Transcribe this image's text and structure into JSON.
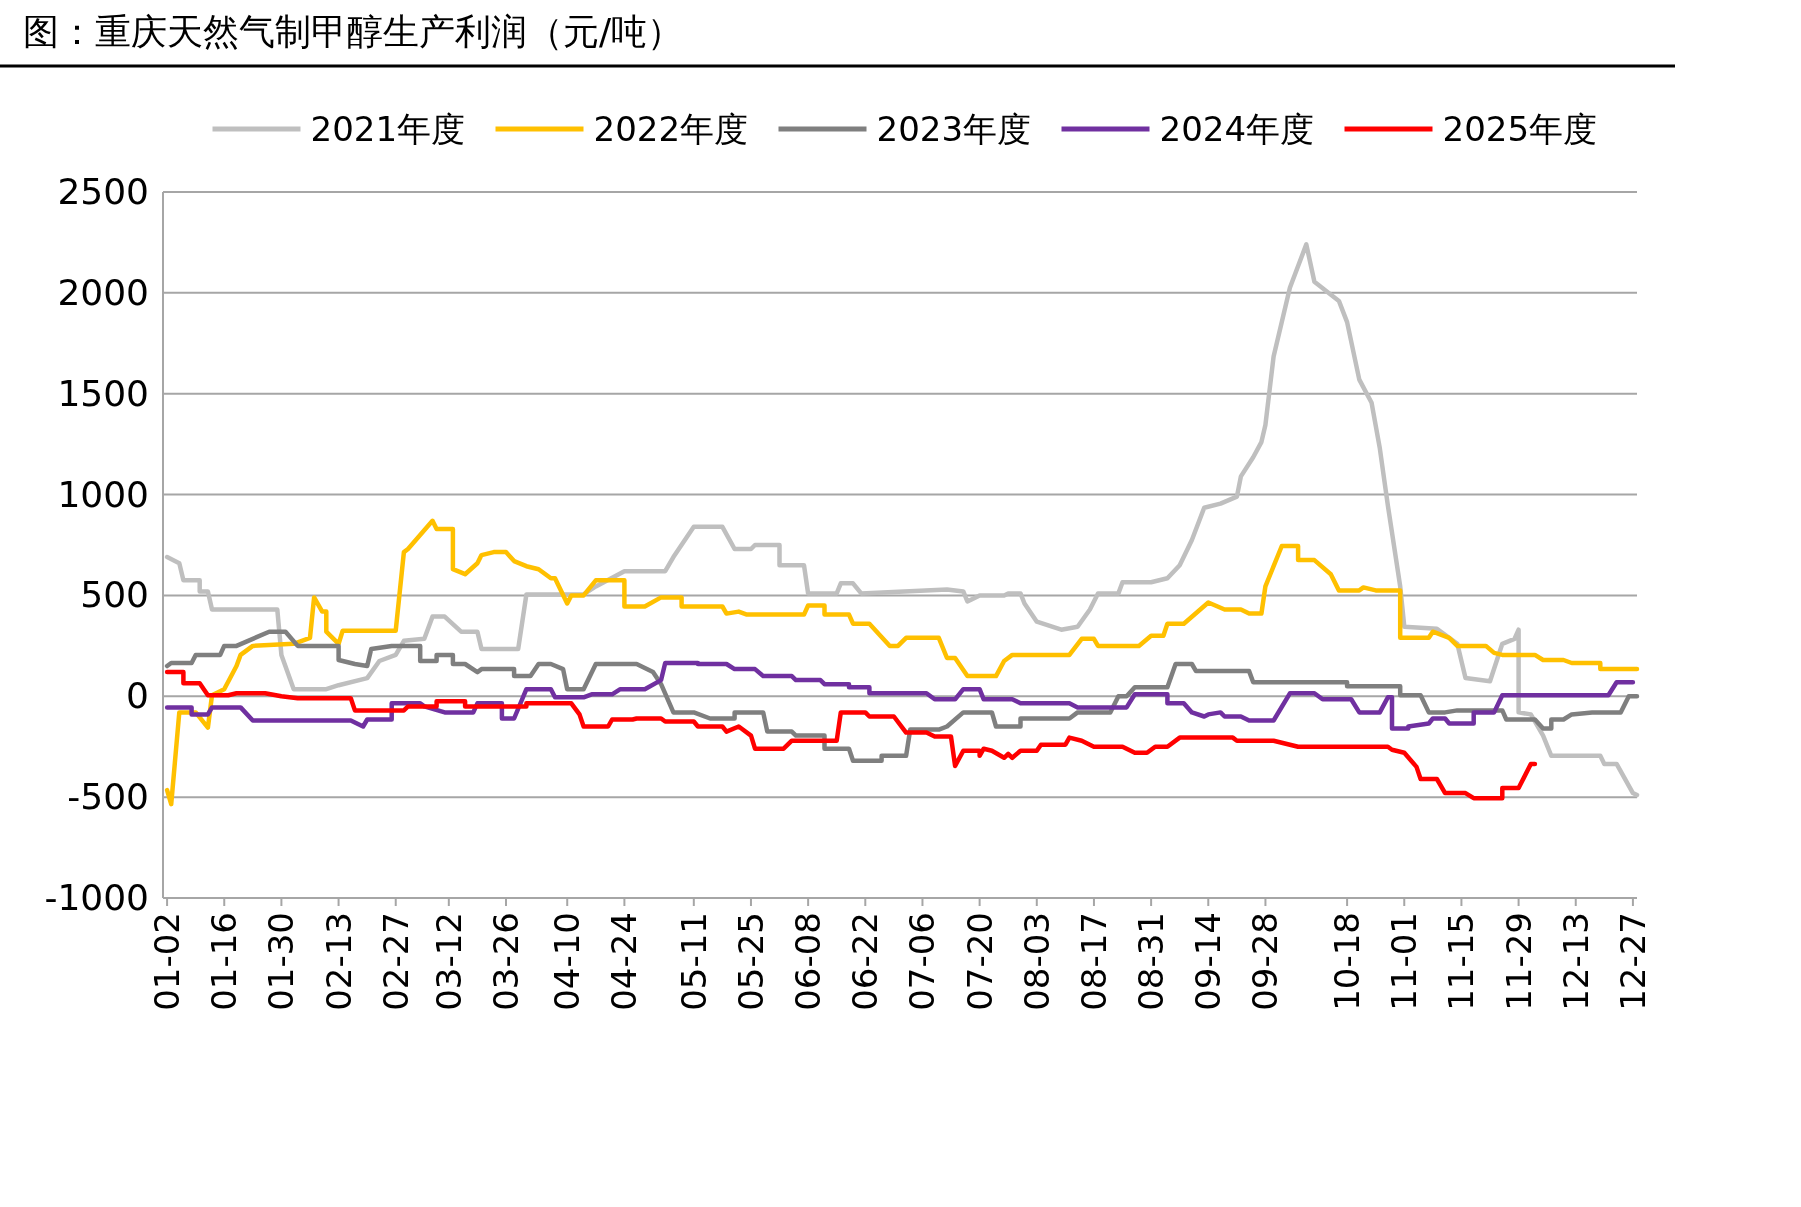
{
  "chart_data": {
    "type": "line",
    "title": "图：重庆天然气制甲醇生产利润（元/吨）",
    "legend": "top",
    "grid": "y",
    "xlim": [
      "--01-01",
      "--12-28"
    ],
    "xticks": [
      {
        "value": "--01-02",
        "label": "01-02"
      },
      {
        "value": "--01-16",
        "label": "01-16"
      },
      {
        "value": "--01-30",
        "label": "01-30"
      },
      {
        "value": "--02-13",
        "label": "02-13"
      },
      {
        "value": "--02-27",
        "label": "02-27"
      },
      {
        "value": "--03-12",
        "label": "03-12"
      },
      {
        "value": "--03-26",
        "label": "03-26"
      },
      {
        "value": "--04-10",
        "label": "04-10"
      },
      {
        "value": "--04-24",
        "label": "04-24"
      },
      {
        "value": "--05-11",
        "label": "05-11"
      },
      {
        "value": "--05-25",
        "label": "05-25"
      },
      {
        "value": "--06-08",
        "label": "06-08"
      },
      {
        "value": "--06-22",
        "label": "06-22"
      },
      {
        "value": "--07-06",
        "label": "07-06"
      },
      {
        "value": "--07-20",
        "label": "07-20"
      },
      {
        "value": "--08-03",
        "label": "08-03"
      },
      {
        "value": "--08-17",
        "label": "08-17"
      },
      {
        "value": "--08-31",
        "label": "08-31"
      },
      {
        "value": "--09-14",
        "label": "09-14"
      },
      {
        "value": "--09-28",
        "label": "09-28"
      },
      {
        "value": "--10-18",
        "label": "10-18"
      },
      {
        "value": "--11-01",
        "label": "11-01"
      },
      {
        "value": "--11-15",
        "label": "11-15"
      },
      {
        "value": "--11-29",
        "label": "11-29"
      },
      {
        "value": "--12-13",
        "label": "12-13"
      },
      {
        "value": "--12-27",
        "label": "12-27"
      }
    ],
    "ylim": [
      -1000,
      2500
    ],
    "yticks": [
      -1000,
      -500,
      0,
      500,
      1000,
      1500,
      2000,
      2500
    ],
    "series": [
      {
        "name": "2021年度",
        "color": "#bfbfbf",
        "x": [
          "--01-02",
          "--01-05",
          "--01-06",
          "--01-10",
          "--01-10",
          "--01-12",
          "--01-13",
          "--01-29",
          "--01-30",
          "--02-02",
          "--02-10",
          "--02-13",
          "--02-20",
          "--02-23",
          "--02-27",
          "--03-01",
          "--03-06",
          "--03-08",
          "--03-11",
          "--03-15",
          "--03-19",
          "--03-20",
          "--03-29",
          "--03-31",
          "--04-14",
          "--04-17",
          "--04-24",
          "--05-04",
          "--05-06",
          "--05-11",
          "--05-18",
          "--05-21",
          "--05-25",
          "--05-26",
          "--06-01",
          "--06-01",
          "--06-07",
          "--06-08",
          "--06-15",
          "--06-16",
          "--06-19",
          "--06-21",
          "--07-12",
          "--07-16",
          "--07-17",
          "--07-20",
          "--07-26",
          "--07-27",
          "--07-30",
          "--07-31",
          "--08-03",
          "--08-09",
          "--08-13",
          "--08-16",
          "--08-18",
          "--08-23",
          "--08-24",
          "--08-31",
          "--09-04",
          "--09-07",
          "--09-10",
          "--09-13",
          "--09-17",
          "--09-21",
          "--09-22",
          "--09-25",
          "--09-27",
          "--09-28",
          "--09-30",
          "--10-04",
          "--10-08",
          "--10-10",
          "--10-16",
          "--10-18",
          "--10-21",
          "--10-24",
          "--10-26",
          "--10-28",
          "--10-31",
          "--11-01",
          "--11-09",
          "--11-14",
          "--11-16",
          "--11-22",
          "--11-25",
          "--11-28",
          "--11-29",
          "--11-29",
          "--12-02",
          "--12-05",
          "--12-07",
          "--12-19",
          "--12-20",
          "--12-23",
          "--12-27",
          "--12-28"
        ],
        "values": [
          690,
          660,
          575,
          575,
          520,
          520,
          430,
          430,
          205,
          35,
          35,
          55,
          90,
          175,
          205,
          275,
          285,
          395,
          395,
          320,
          320,
          235,
          235,
          505,
          505,
          545,
          620,
          620,
          690,
          840,
          840,
          730,
          730,
          750,
          750,
          650,
          650,
          510,
          510,
          560,
          560,
          510,
          530,
          520,
          470,
          500,
          500,
          510,
          510,
          460,
          370,
          330,
          345,
          430,
          510,
          510,
          565,
          565,
          585,
          650,
          775,
          935,
          955,
          990,
          1090,
          1185,
          1260,
          1345,
          1685,
          2025,
          2240,
          2055,
          1960,
          1855,
          1570,
          1455,
          1230,
          945,
          545,
          345,
          335,
          260,
          90,
          75,
          260,
          285,
          330,
          -80,
          -90,
          -195,
          -295,
          -295,
          -335,
          -335,
          -480,
          -490
        ]
      },
      {
        "name": "2022年度",
        "color": "#ffc000",
        "x": [
          "--01-02",
          "--01-03",
          "--01-05",
          "--01-09",
          "--01-12",
          "--01-13",
          "--01-16",
          "--01-19",
          "--01-20",
          "--01-23",
          "--02-02",
          "--02-06",
          "--02-07",
          "--02-09",
          "--02-10",
          "--02-10",
          "--02-13",
          "--02-14",
          "--02-27",
          "--03-01",
          "--03-02",
          "--03-08",
          "--03-09",
          "--03-13",
          "--03-13",
          "--03-16",
          "--03-19",
          "--03-20",
          "--03-23",
          "--03-26",
          "--03-28",
          "--03-31",
          "--04-03",
          "--04-06",
          "--04-07",
          "--04-10",
          "--04-11",
          "--04-14",
          "--04-17",
          "--04-24",
          "--04-24",
          "--04-29",
          "--05-03",
          "--05-08",
          "--05-08",
          "--05-18",
          "--05-19",
          "--05-22",
          "--05-24",
          "--06-07",
          "--06-08",
          "--06-12",
          "--06-12",
          "--06-18",
          "--06-19",
          "--06-23",
          "--06-28",
          "--06-30",
          "--07-02",
          "--07-10",
          "--07-12",
          "--07-14",
          "--07-17",
          "--07-24",
          "--07-26",
          "--07-28",
          "--08-11",
          "--08-14",
          "--08-17",
          "--08-18",
          "--08-28",
          "--08-31",
          "--09-03",
          "--09-04",
          "--09-08",
          "--09-14",
          "--09-18",
          "--09-22",
          "--09-24",
          "--09-27",
          "--09-28",
          "--10-02",
          "--10-06",
          "--10-06",
          "--10-10",
          "--10-14",
          "--10-16",
          "--10-21",
          "--10-22",
          "--10-25",
          "--10-31",
          "--10-31",
          "--11-07",
          "--11-08",
          "--11-12",
          "--11-14",
          "--11-21",
          "--11-23",
          "--11-25",
          "--12-03",
          "--12-05",
          "--12-10",
          "--12-12",
          "--12-19",
          "--12-19",
          "--12-28"
        ],
        "values": [
          -465,
          -535,
          -80,
          -80,
          -155,
          5,
          35,
          150,
          205,
          250,
          260,
          290,
          490,
          420,
          420,
          320,
          260,
          325,
          325,
          715,
          730,
          870,
          830,
          830,
          630,
          605,
          660,
          700,
          715,
          715,
          670,
          645,
          630,
          585,
          585,
          460,
          500,
          500,
          575,
          575,
          445,
          445,
          490,
          490,
          445,
          445,
          410,
          420,
          405,
          405,
          450,
          450,
          405,
          405,
          360,
          360,
          250,
          250,
          290,
          290,
          190,
          190,
          100,
          100,
          175,
          205,
          205,
          285,
          285,
          250,
          250,
          300,
          300,
          360,
          360,
          465,
          430,
          430,
          410,
          410,
          545,
          745,
          745,
          675,
          675,
          605,
          525,
          525,
          540,
          525,
          525,
          290,
          290,
          320,
          290,
          250,
          250,
          215,
          205,
          205,
          180,
          180,
          165,
          165,
          135,
          135
        ]
      },
      {
        "name": "2023年度",
        "color": "#7f7f7f",
        "x": [
          "--01-02",
          "--01-03",
          "--01-08",
          "--01-09",
          "--01-15",
          "--01-16",
          "--01-19",
          "--01-27",
          "--01-31",
          "--02-03",
          "--02-13",
          "--02-13",
          "--02-17",
          "--02-20",
          "--02-21",
          "--02-26",
          "--03-05",
          "--03-05",
          "--03-09",
          "--03-09",
          "--03-13",
          "--03-13",
          "--03-16",
          "--03-19",
          "--03-20",
          "--03-28",
          "--03-28",
          "--04-01",
          "--04-03",
          "--04-06",
          "--04-09",
          "--04-10",
          "--04-14",
          "--04-17",
          "--04-27",
          "--05-01",
          "--05-03",
          "--05-06",
          "--05-11",
          "--05-15",
          "--05-21",
          "--05-21",
          "--05-28",
          "--05-29",
          "--06-04",
          "--06-05",
          "--06-12",
          "--06-12",
          "--06-18",
          "--06-19",
          "--06-26",
          "--06-26",
          "--07-02",
          "--07-03",
          "--07-10",
          "--07-12",
          "--07-16",
          "--07-23",
          "--07-24",
          "--07-30",
          "--07-30",
          "--08-11",
          "--08-13",
          "--08-21",
          "--08-23",
          "--08-25",
          "--08-27",
          "--09-04",
          "--09-06",
          "--09-10",
          "--09-11",
          "--09-24",
          "--09-25",
          "--10-18",
          "--10-18",
          "--10-31",
          "--10-31",
          "--11-05",
          "--11-07",
          "--11-11",
          "--11-14",
          "--11-25",
          "--11-26",
          "--12-03",
          "--12-05",
          "--12-07",
          "--12-07",
          "--12-10",
          "--12-12",
          "--12-17",
          "--12-24",
          "--12-26",
          "--12-28"
        ],
        "values": [
          150,
          165,
          165,
          205,
          205,
          250,
          250,
          320,
          320,
          250,
          250,
          180,
          160,
          150,
          235,
          250,
          250,
          175,
          175,
          205,
          205,
          160,
          160,
          120,
          135,
          135,
          100,
          100,
          160,
          160,
          135,
          35,
          35,
          160,
          160,
          120,
          60,
          -80,
          -80,
          -110,
          -110,
          -80,
          -80,
          -175,
          -175,
          -195,
          -195,
          -260,
          -260,
          -320,
          -320,
          -295,
          -295,
          -165,
          -165,
          -150,
          -80,
          -80,
          -150,
          -150,
          -110,
          -110,
          -80,
          -80,
          0,
          0,
          45,
          45,
          160,
          160,
          125,
          125,
          70,
          70,
          50,
          50,
          5,
          5,
          -80,
          -80,
          -70,
          -70,
          -115,
          -115,
          -160,
          -160,
          -115,
          -115,
          -90,
          -80,
          -80,
          0,
          0
        ]
      },
      {
        "name": "2024年度",
        "color": "#7030a0",
        "x": [
          "--01-02",
          "--01-08",
          "--01-08",
          "--01-12",
          "--01-13",
          "--01-20",
          "--01-23",
          "--02-16",
          "--02-19",
          "--02-20",
          "--02-26",
          "--02-26",
          "--03-05",
          "--03-06",
          "--03-11",
          "--03-18",
          "--03-19",
          "--03-25",
          "--03-25",
          "--03-28",
          "--03-31",
          "--04-06",
          "--04-07",
          "--04-14",
          "--04-16",
          "--04-21",
          "--04-23",
          "--04-29",
          "--05-03",
          "--05-04",
          "--05-12",
          "--05-12",
          "--05-19",
          "--05-21",
          "--05-26",
          "--05-28",
          "--06-04",
          "--06-05",
          "--06-11",
          "--06-12",
          "--06-18",
          "--06-18",
          "--06-23",
          "--06-23",
          "--07-07",
          "--07-09",
          "--07-14",
          "--07-16",
          "--07-20",
          "--07-21",
          "--07-28",
          "--07-30",
          "--08-11",
          "--08-13",
          "--08-25",
          "--08-27",
          "--09-04",
          "--09-04",
          "--09-08",
          "--09-10",
          "--09-13",
          "--09-14",
          "--09-17",
          "--09-18",
          "--09-22",
          "--09-24",
          "--09-30",
          "--10-04",
          "--10-10",
          "--10-12",
          "--10-19",
          "--10-21",
          "--10-26",
          "--10-28",
          "--10-29",
          "--10-29",
          "--11-02",
          "--11-02",
          "--11-07",
          "--11-08",
          "--11-11",
          "--11-12",
          "--11-18",
          "--11-18",
          "--11-23",
          "--11-25",
          "--12-21",
          "--12-23",
          "--12-27"
        ],
        "values": [
          -55,
          -55,
          -90,
          -90,
          -55,
          -55,
          -120,
          -120,
          -150,
          -115,
          -115,
          -35,
          -35,
          -50,
          -80,
          -80,
          -35,
          -35,
          -110,
          -110,
          35,
          35,
          -5,
          -5,
          10,
          10,
          35,
          35,
          80,
          165,
          165,
          160,
          160,
          135,
          135,
          100,
          100,
          80,
          80,
          60,
          60,
          45,
          45,
          15,
          15,
          -15,
          -15,
          35,
          35,
          -15,
          -15,
          -35,
          -35,
          -55,
          -55,
          10,
          10,
          -35,
          -35,
          -80,
          -100,
          -90,
          -80,
          -100,
          -100,
          -120,
          -120,
          15,
          15,
          -15,
          -15,
          -80,
          -80,
          -5,
          -5,
          -160,
          -160,
          -150,
          -135,
          -110,
          -110,
          -135,
          -135,
          -80,
          -80,
          5,
          5,
          70,
          70
        ]
      },
      {
        "name": "2025年度",
        "color": "#ff0000",
        "x": [
          "--01-02",
          "--01-06",
          "--01-06",
          "--01-10",
          "--01-12",
          "--01-17",
          "--01-19",
          "--01-26",
          "--01-30",
          "--02-03",
          "--02-16",
          "--02-17",
          "--03-01",
          "--03-02",
          "--03-09",
          "--03-09",
          "--03-16",
          "--03-16",
          "--03-31",
          "--03-31",
          "--04-11",
          "--04-13",
          "--04-14",
          "--04-20",
          "--04-21",
          "--04-26",
          "--04-27",
          "--05-03",
          "--05-04",
          "--05-11",
          "--05-12",
          "--05-18",
          "--05-19",
          "--05-22",
          "--05-25",
          "--05-26",
          "--06-02",
          "--06-04",
          "--06-15",
          "--06-16",
          "--06-22",
          "--06-23",
          "--06-29",
          "--07-02",
          "--07-07",
          "--07-09",
          "--07-13",
          "--07-14",
          "--07-16",
          "--07-20",
          "--07-20",
          "--07-21",
          "--07-23",
          "--07-26",
          "--07-27",
          "--07-28",
          "--07-30",
          "--08-03",
          "--08-04",
          "--08-10",
          "--08-11",
          "--08-14",
          "--08-17",
          "--08-24",
          "--08-27",
          "--08-30",
          "--09-01",
          "--09-04",
          "--09-07",
          "--09-20",
          "--09-21",
          "--09-30",
          "--10-06",
          "--10-28",
          "--10-29",
          "--11-01",
          "--11-04",
          "--11-05",
          "--11-09",
          "--11-11",
          "--11-16",
          "--11-18",
          "--11-25",
          "--11-25",
          "--11-29",
          "--12-02",
          "--12-03"
        ],
        "values": [
          120,
          120,
          65,
          65,
          5,
          5,
          15,
          15,
          0,
          -10,
          -10,
          -70,
          -70,
          -50,
          -50,
          -25,
          -25,
          -50,
          -50,
          -35,
          -35,
          -90,
          -150,
          -150,
          -115,
          -115,
          -110,
          -110,
          -125,
          -125,
          -150,
          -150,
          -175,
          -150,
          -195,
          -260,
          -260,
          -220,
          -220,
          -80,
          -80,
          -100,
          -100,
          -180,
          -180,
          -200,
          -200,
          -345,
          -270,
          -270,
          -295,
          -260,
          -270,
          -305,
          -285,
          -305,
          -270,
          -270,
          -240,
          -240,
          -205,
          -220,
          -250,
          -250,
          -280,
          -280,
          -250,
          -250,
          -205,
          -205,
          -220,
          -220,
          -250,
          -250,
          -265,
          -280,
          -350,
          -410,
          -410,
          -480,
          -480,
          -505,
          -505,
          -455,
          -455,
          -335,
          -335
        ]
      }
    ]
  }
}
